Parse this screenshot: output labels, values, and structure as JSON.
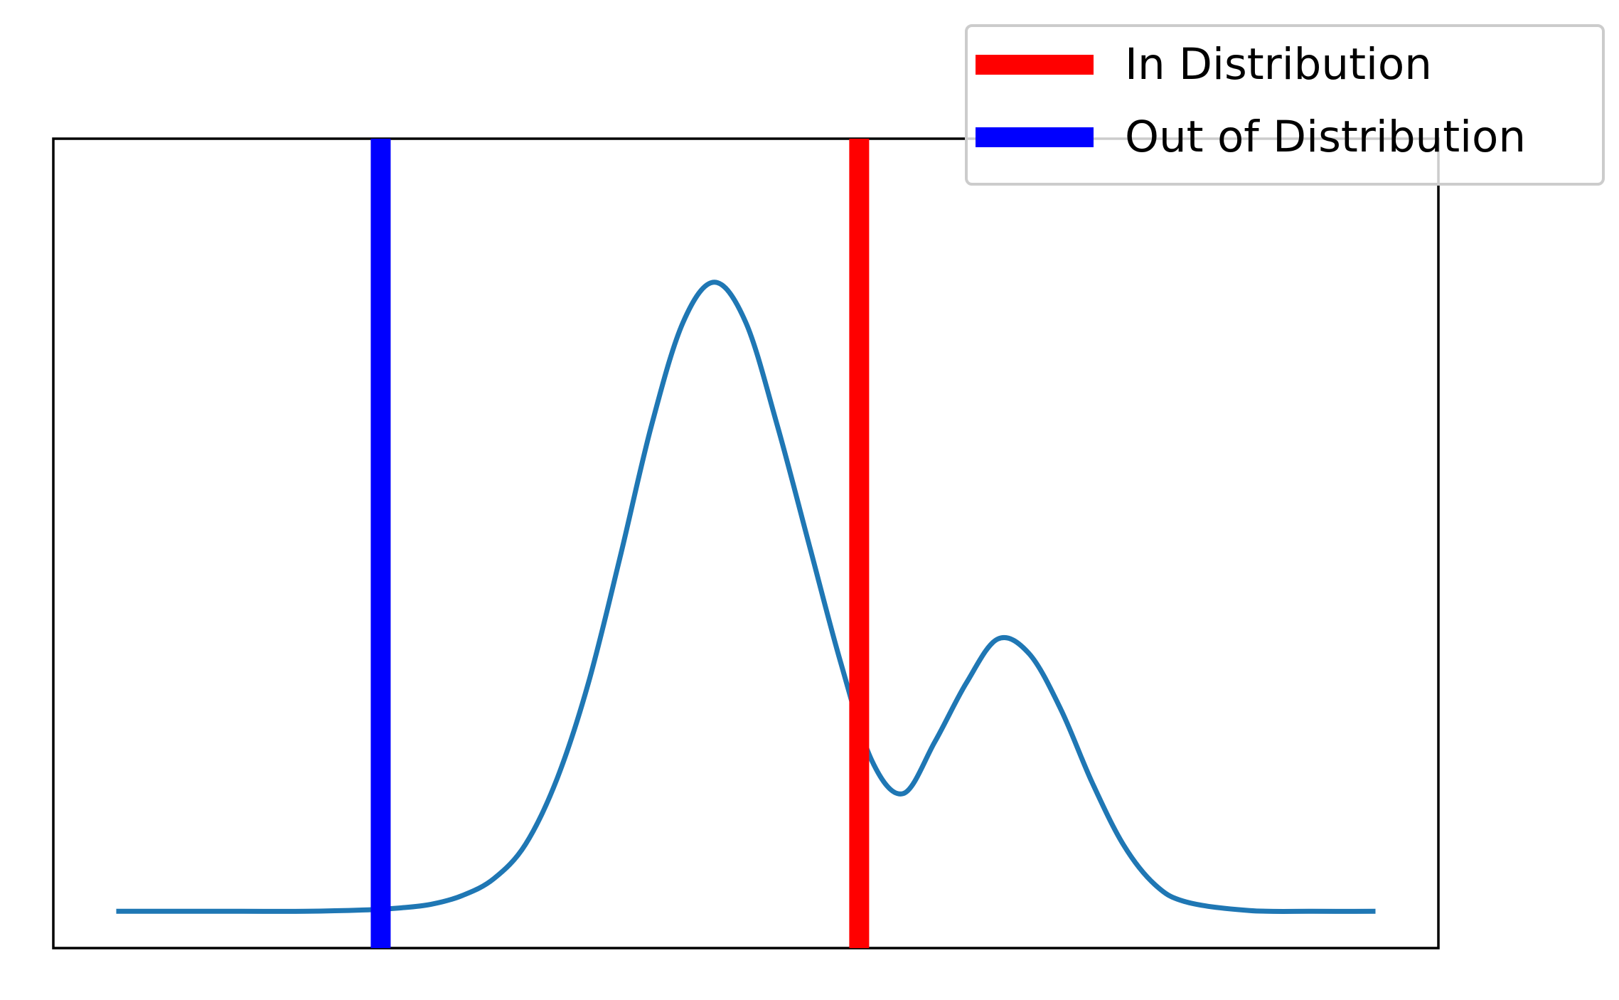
{
  "chart_data": {
    "type": "line",
    "title": "",
    "xlabel": "",
    "ylabel": "",
    "grid": false,
    "axes_ticks": false,
    "xlim": [
      -5.0,
      6.0
    ],
    "ylim": [
      -0.01,
      0.21
    ],
    "series": [
      {
        "name": "",
        "color": "#1f77b4",
        "x": [
          -4.5,
          -4.0,
          -3.5,
          -3.0,
          -2.5,
          -2.25,
          -2.0,
          -1.75,
          -1.5,
          -1.25,
          -1.0,
          -0.75,
          -0.5,
          -0.25,
          0.0,
          0.25,
          0.5,
          0.75,
          1.0,
          1.25,
          1.5,
          1.75,
          2.0,
          2.25,
          2.5,
          2.75,
          3.0,
          3.25,
          3.5,
          3.75,
          4.0,
          4.5,
          5.0,
          5.5
        ],
        "y": [
          0.0,
          0.0,
          0.0,
          0.0,
          0.0004,
          0.0009,
          0.0019,
          0.0043,
          0.0089,
          0.0182,
          0.036,
          0.0621,
          0.0961,
          0.132,
          0.16,
          0.171,
          0.16,
          0.132,
          0.1,
          0.068,
          0.041,
          0.032,
          0.046,
          0.062,
          0.074,
          0.07,
          0.055,
          0.035,
          0.018,
          0.0072,
          0.0025,
          0.0002,
          0.0,
          0.0
        ]
      }
    ],
    "vlines": [
      {
        "name": "Out of Distribution",
        "x": -2.4,
        "color": "#0000ff"
      },
      {
        "name": "In Distribution",
        "x": 1.4,
        "color": "#ff0000"
      }
    ],
    "legend": {
      "placement": "top-right",
      "entries": [
        {
          "label": "In Distribution",
          "color": "#ff0000"
        },
        {
          "label": "Out of Distribution",
          "color": "#0000ff"
        }
      ]
    }
  }
}
